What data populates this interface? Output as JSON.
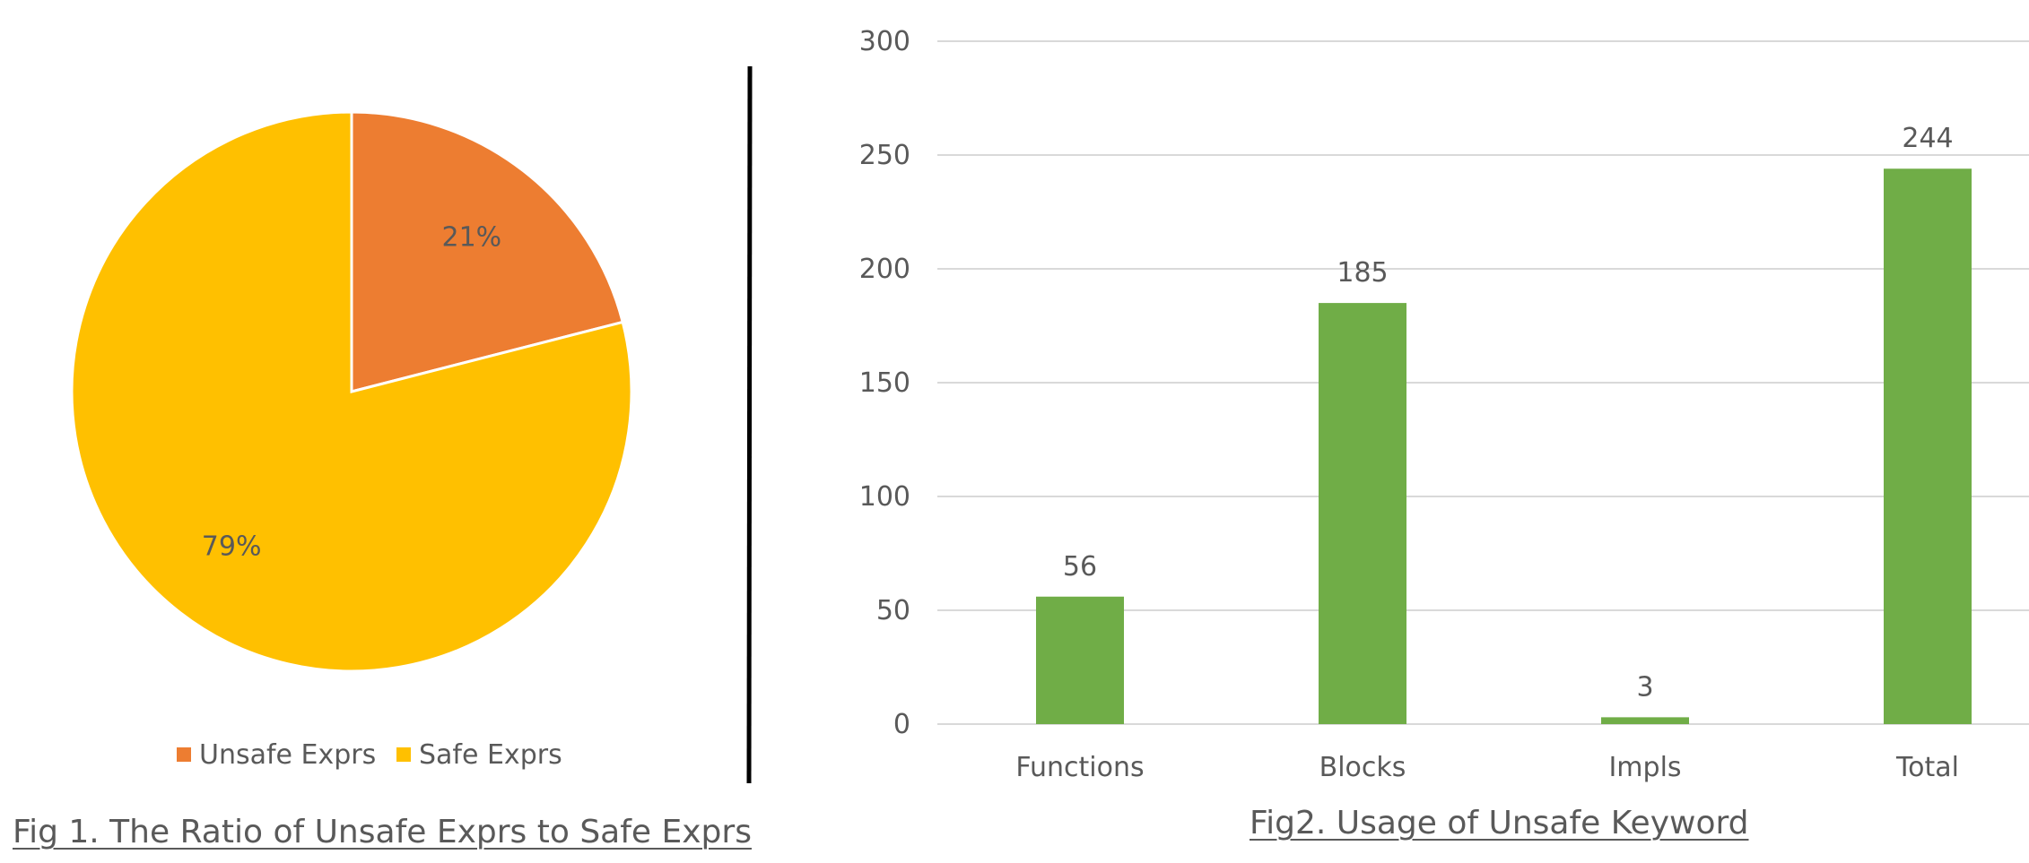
{
  "colors": {
    "unsafe": "#ED7D31",
    "safe": "#FFC000",
    "bar": "#70AD47",
    "grid": "#D9D9D9",
    "text": "#595959",
    "divider": "#000000"
  },
  "chart_data": [
    {
      "type": "pie",
      "title": "",
      "caption": "Fig 1. The Ratio of Unsafe Exprs to Safe Exprs",
      "categories": [
        "Unsafe Exprs",
        "Safe Exprs"
      ],
      "values": [
        21,
        79
      ],
      "data_labels": [
        "21%",
        "79%"
      ],
      "legend": {
        "position": "bottom",
        "entries": [
          "Unsafe Exprs",
          "Safe Exprs"
        ]
      }
    },
    {
      "type": "bar",
      "title": "",
      "caption": "Fig2. Usage of Unsafe Keyword",
      "categories": [
        "Functions",
        "Blocks",
        "Impls",
        "Total"
      ],
      "values": [
        56,
        185,
        3,
        244
      ],
      "data_labels": [
        "56",
        "185",
        "3",
        "244"
      ],
      "ylim": [
        0,
        300
      ],
      "yticks": [
        "0",
        "50",
        "100",
        "150",
        "200",
        "250",
        "300"
      ],
      "grid": true,
      "xlabel": "",
      "ylabel": ""
    }
  ]
}
